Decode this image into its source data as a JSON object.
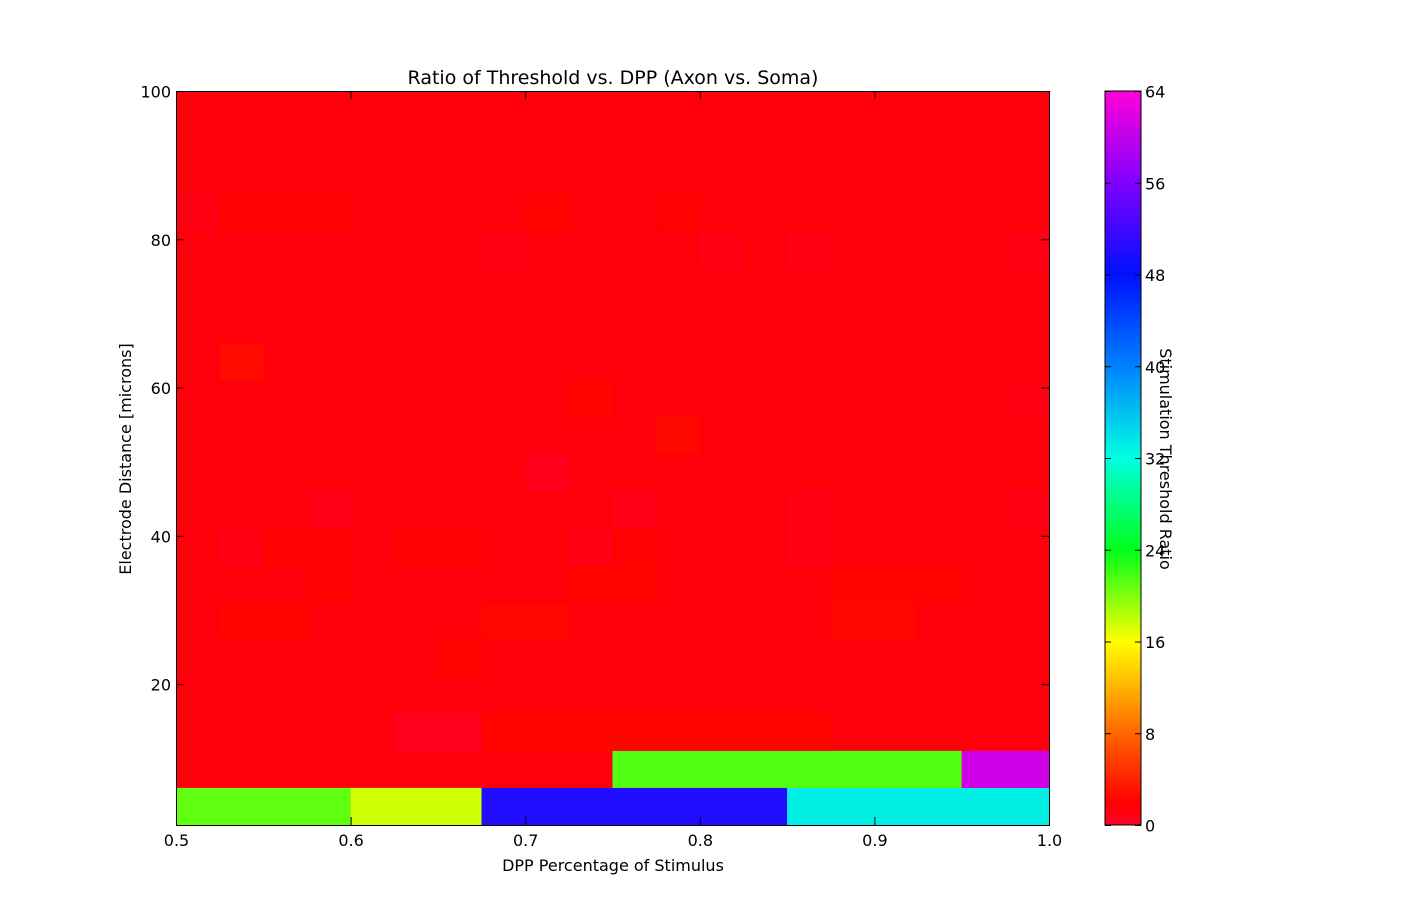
{
  "chart_data": {
    "type": "heatmap",
    "title": "Ratio of Threshold vs. DPP (Axon vs. Soma)",
    "xlabel": "DPP Percentage of Stimulus",
    "ylabel": "Electrode Distance [microns]",
    "colorbar_label": "Stimulation Threshold Ratio",
    "xlim": [
      0.5,
      1.0
    ],
    "ylim": [
      1,
      100
    ],
    "clim": [
      0,
      64
    ],
    "colormap": "gist_rainbow_r",
    "x_ticks": [
      0.5,
      0.6,
      0.7,
      0.8,
      0.9,
      1.0
    ],
    "x_tick_labels": [
      "0.5",
      "0.6",
      "0.7",
      "0.8",
      "0.9",
      "1.0"
    ],
    "y_ticks": [
      20,
      40,
      60,
      80,
      100
    ],
    "y_tick_labels": [
      "20",
      "40",
      "60",
      "80",
      "100"
    ],
    "colorbar_ticks": [
      0,
      8,
      16,
      24,
      32,
      40,
      48,
      56,
      64
    ],
    "colorbar_tick_labels": [
      "0",
      "8",
      "16",
      "24",
      "32",
      "40",
      "48",
      "56",
      "64"
    ],
    "x_edges": [
      0.5,
      0.525,
      0.55,
      0.575,
      0.6,
      0.625,
      0.65,
      0.675,
      0.7,
      0.725,
      0.75,
      0.775,
      0.8,
      0.825,
      0.85,
      0.875,
      0.9,
      0.925,
      0.95,
      0.975,
      1.0
    ],
    "y_edges": [
      1,
      6,
      11,
      16,
      21,
      26,
      31,
      36,
      41,
      46,
      51,
      56,
      61,
      66,
      71,
      76,
      81,
      86,
      91,
      96,
      101
    ],
    "grid": false,
    "base_value": 1.4,
    "cells": [
      {
        "x0": 0.5,
        "x1": 0.6,
        "y0": 1,
        "y1": 6,
        "value": 21
      },
      {
        "x0": 0.6,
        "x1": 0.675,
        "y0": 1,
        "y1": 6,
        "value": 17.5
      },
      {
        "x0": 0.675,
        "x1": 0.85,
        "y0": 1,
        "y1": 6,
        "value": 50
      },
      {
        "x0": 0.85,
        "x1": 1.0,
        "y0": 1,
        "y1": 6,
        "value": 33
      },
      {
        "x0": 0.75,
        "x1": 0.95,
        "y0": 6,
        "y1": 11,
        "value": 21.5
      },
      {
        "x0": 0.95,
        "x1": 1.0,
        "y0": 6,
        "y1": 11,
        "value": 61
      },
      {
        "x0": 0.625,
        "x1": 0.675,
        "y0": 11,
        "y1": 16,
        "value": 0.5
      },
      {
        "x0": 0.675,
        "x1": 0.875,
        "y0": 11,
        "y1": 16,
        "value": 2.2
      },
      {
        "x0": 0.65,
        "x1": 0.675,
        "y0": 21,
        "y1": 26,
        "value": 2.2
      },
      {
        "x0": 0.525,
        "x1": 0.575,
        "y0": 26,
        "y1": 31,
        "value": 2.2
      },
      {
        "x0": 0.675,
        "x1": 0.725,
        "y0": 26,
        "y1": 31,
        "value": 2.3
      },
      {
        "x0": 0.875,
        "x1": 0.925,
        "y0": 26,
        "y1": 31,
        "value": 2.3
      },
      {
        "x0": 0.725,
        "x1": 0.775,
        "y0": 31,
        "y1": 36,
        "value": 2.2
      },
      {
        "x0": 0.575,
        "x1": 0.6,
        "y0": 31,
        "y1": 36,
        "value": 2.0
      },
      {
        "x0": 0.875,
        "x1": 0.95,
        "y0": 31,
        "y1": 36,
        "value": 2.1
      },
      {
        "x0": 0.525,
        "x1": 0.55,
        "y0": 36,
        "y1": 41,
        "value": 1.0
      },
      {
        "x0": 0.55,
        "x1": 0.6,
        "y0": 36,
        "y1": 41,
        "value": 2.0
      },
      {
        "x0": 0.625,
        "x1": 0.675,
        "y0": 36,
        "y1": 41,
        "value": 2.0
      },
      {
        "x0": 0.725,
        "x1": 0.75,
        "y0": 36,
        "y1": 41,
        "value": 1.0
      },
      {
        "x0": 0.75,
        "x1": 0.775,
        "y0": 36,
        "y1": 41,
        "value": 2.0
      },
      {
        "x0": 0.575,
        "x1": 0.6,
        "y0": 41,
        "y1": 46,
        "value": 0.9
      },
      {
        "x0": 0.75,
        "x1": 0.775,
        "y0": 41,
        "y1": 46,
        "value": 0.9
      },
      {
        "x0": 0.85,
        "x1": 0.875,
        "y0": 36,
        "y1": 46,
        "value": 1.0
      },
      {
        "x0": 0.975,
        "x1": 1.0,
        "y0": 41,
        "y1": 46,
        "value": 1.0
      },
      {
        "x0": 0.7,
        "x1": 0.725,
        "y0": 46,
        "y1": 51,
        "value": 0.6
      },
      {
        "x0": 0.775,
        "x1": 0.8,
        "y0": 51,
        "y1": 56,
        "value": 2.4
      },
      {
        "x0": 0.725,
        "x1": 0.75,
        "y0": 56,
        "y1": 61,
        "value": 2.2
      },
      {
        "x0": 0.975,
        "x1": 1.0,
        "y0": 56,
        "y1": 61,
        "value": 1.1
      },
      {
        "x0": 0.525,
        "x1": 0.55,
        "y0": 61,
        "y1": 66,
        "value": 2.6
      },
      {
        "x0": 0.675,
        "x1": 0.7,
        "y0": 76,
        "y1": 81,
        "value": 1.0
      },
      {
        "x0": 0.8,
        "x1": 0.825,
        "y0": 76,
        "y1": 81,
        "value": 1.0
      },
      {
        "x0": 0.85,
        "x1": 0.875,
        "y0": 76,
        "y1": 81,
        "value": 1.0
      },
      {
        "x0": 0.975,
        "x1": 1.0,
        "y0": 76,
        "y1": 81,
        "value": 1.1
      },
      {
        "x0": 0.525,
        "x1": 0.6,
        "y0": 81,
        "y1": 86,
        "value": 2.0
      },
      {
        "x0": 0.7,
        "x1": 0.725,
        "y0": 81,
        "y1": 86,
        "value": 2.1
      },
      {
        "x0": 0.775,
        "x1": 0.8,
        "y0": 81,
        "y1": 86,
        "value": 2.0
      },
      {
        "x0": 0.5,
        "x1": 0.525,
        "y0": 81,
        "y1": 86,
        "value": 1.1
      }
    ]
  }
}
